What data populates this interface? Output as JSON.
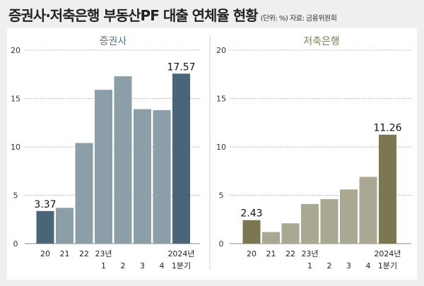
{
  "title": "증권사·저축은행 부동산PF 대출 연체율 현황",
  "subtitle": "(단위: %) 자료: 금융위원회",
  "chart_data": [
    {
      "type": "bar",
      "title": "증권사",
      "title_color": "#5b7384",
      "categories_line1": [
        "20",
        "21",
        "22",
        "23년",
        "",
        "",
        "",
        "2024년"
      ],
      "categories_line2": [
        "",
        "",
        "",
        "1",
        "2",
        "3",
        "4",
        "1분기"
      ],
      "values": [
        3.37,
        3.7,
        10.4,
        15.9,
        17.3,
        13.9,
        13.8,
        17.57
      ],
      "labels": [
        "3.37",
        "",
        "",
        "",
        "",
        "",
        "",
        "17.57"
      ],
      "highlight": [
        true,
        false,
        false,
        false,
        false,
        false,
        false,
        true
      ],
      "colors": {
        "highlight": "#4a6578",
        "normal": "#8c9ea8"
      },
      "yticks": [
        "0",
        "5",
        "10",
        "15",
        "20"
      ],
      "ylim": [
        0,
        20
      ]
    },
    {
      "type": "bar",
      "title": "저축은행",
      "title_color": "#807a55",
      "categories_line1": [
        "20",
        "21",
        "22",
        "23년",
        "",
        "",
        "",
        "2024년"
      ],
      "categories_line2": [
        "",
        "",
        "",
        "1",
        "2",
        "3",
        "4",
        "1분기"
      ],
      "values": [
        2.43,
        1.2,
        2.1,
        4.1,
        4.6,
        5.6,
        6.9,
        11.26
      ],
      "labels": [
        "2.43",
        "",
        "",
        "",
        "",
        "",
        "",
        "11.26"
      ],
      "highlight": [
        true,
        false,
        false,
        false,
        false,
        false,
        false,
        true
      ],
      "colors": {
        "highlight": "#7b7753",
        "normal": "#aaa793"
      },
      "yticks": [
        "0",
        "5",
        "10",
        "15",
        "20"
      ],
      "ylim": [
        0,
        20
      ]
    }
  ]
}
